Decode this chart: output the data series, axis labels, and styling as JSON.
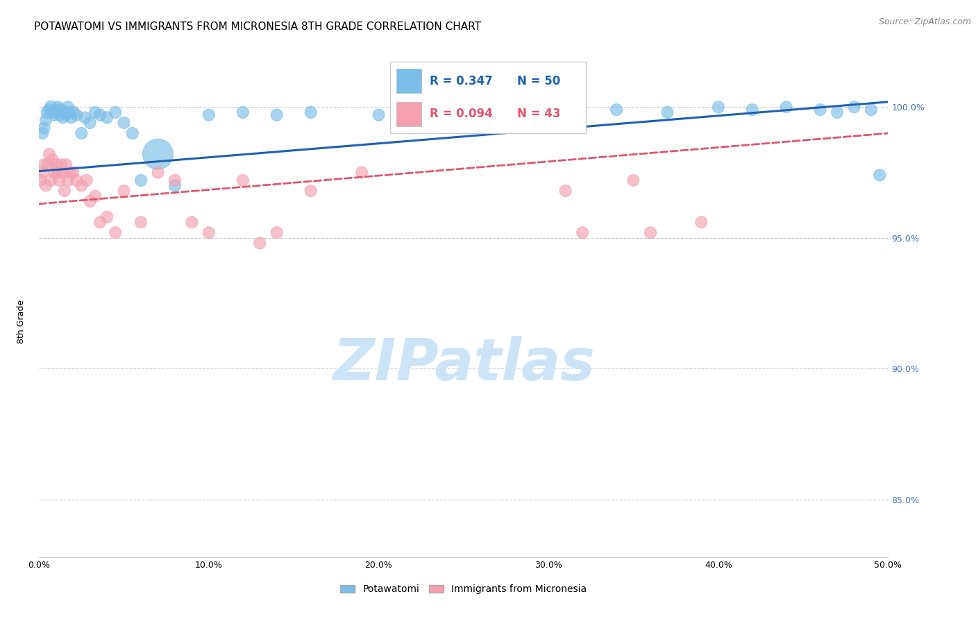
{
  "title": "POTAWATOMI VS IMMIGRANTS FROM MICRONESIA 8TH GRADE CORRELATION CHART",
  "source": "Source: ZipAtlas.com",
  "ylabel": "8th Grade",
  "xlim": [
    0.0,
    0.5
  ],
  "ylim": [
    0.828,
    1.022
  ],
  "xticks": [
    0.0,
    0.1,
    0.2,
    0.3,
    0.4,
    0.5
  ],
  "xticklabels": [
    "0.0%",
    "10.0%",
    "20.0%",
    "30.0%",
    "40.0%",
    "50.0%"
  ],
  "yticks": [
    0.85,
    0.9,
    0.95,
    1.0
  ],
  "yticklabels": [
    "85.0%",
    "90.0%",
    "95.0%",
    "100.0%"
  ],
  "blue_color": "#7abde8",
  "pink_color": "#f4a0b0",
  "blue_line_color": "#2060b0",
  "pink_line_color": "#e05570",
  "legend_R1": "R = 0.347",
  "legend_N1": "N = 50",
  "legend_R2": "R = 0.094",
  "legend_N2": "N = 43",
  "legend_label1": "Potawatomi",
  "legend_label2": "Immigrants from Micronesia",
  "watermark": "ZIPatlas",
  "blue_scatter_x": [
    0.002,
    0.003,
    0.004,
    0.005,
    0.006,
    0.007,
    0.008,
    0.009,
    0.01,
    0.011,
    0.012,
    0.013,
    0.014,
    0.015,
    0.016,
    0.017,
    0.018,
    0.019,
    0.02,
    0.022,
    0.025,
    0.027,
    0.03,
    0.033,
    0.036,
    0.04,
    0.045,
    0.05,
    0.055,
    0.06,
    0.07,
    0.08,
    0.1,
    0.12,
    0.14,
    0.16,
    0.2,
    0.23,
    0.27,
    0.31,
    0.34,
    0.37,
    0.4,
    0.42,
    0.44,
    0.46,
    0.47,
    0.48,
    0.49,
    0.495
  ],
  "blue_scatter_y": [
    0.99,
    0.992,
    0.995,
    0.998,
    0.999,
    1.0,
    0.998,
    0.997,
    0.999,
    1.0,
    0.997,
    0.999,
    0.996,
    0.998,
    0.997,
    1.0,
    0.998,
    0.996,
    0.998,
    0.997,
    0.99,
    0.996,
    0.994,
    0.998,
    0.997,
    0.996,
    0.998,
    0.994,
    0.99,
    0.972,
    0.982,
    0.97,
    0.997,
    0.998,
    0.997,
    0.998,
    0.997,
    0.996,
    0.998,
    0.997,
    0.999,
    0.998,
    1.0,
    0.999,
    1.0,
    0.999,
    0.998,
    1.0,
    0.999,
    0.974
  ],
  "blue_scatter_size": [
    30,
    30,
    30,
    35,
    30,
    35,
    30,
    30,
    30,
    30,
    30,
    30,
    30,
    30,
    30,
    30,
    30,
    30,
    35,
    30,
    30,
    30,
    30,
    30,
    30,
    30,
    30,
    30,
    30,
    30,
    200,
    30,
    30,
    30,
    30,
    30,
    30,
    30,
    30,
    30,
    30,
    30,
    30,
    30,
    30,
    30,
    30,
    30,
    30,
    30
  ],
  "pink_scatter_x": [
    0.001,
    0.002,
    0.003,
    0.004,
    0.005,
    0.006,
    0.007,
    0.008,
    0.009,
    0.01,
    0.011,
    0.012,
    0.013,
    0.014,
    0.015,
    0.016,
    0.017,
    0.018,
    0.02,
    0.022,
    0.025,
    0.028,
    0.03,
    0.033,
    0.036,
    0.04,
    0.045,
    0.05,
    0.06,
    0.07,
    0.08,
    0.09,
    0.1,
    0.12,
    0.13,
    0.14,
    0.16,
    0.19,
    0.31,
    0.32,
    0.35,
    0.36,
    0.39
  ],
  "pink_scatter_y": [
    0.972,
    0.975,
    0.978,
    0.97,
    0.978,
    0.982,
    0.972,
    0.98,
    0.975,
    0.978,
    0.975,
    0.972,
    0.978,
    0.975,
    0.968,
    0.978,
    0.972,
    0.975,
    0.975,
    0.972,
    0.97,
    0.972,
    0.964,
    0.966,
    0.956,
    0.958,
    0.952,
    0.968,
    0.956,
    0.975,
    0.972,
    0.956,
    0.952,
    0.972,
    0.948,
    0.952,
    0.968,
    0.975,
    0.968,
    0.952,
    0.972,
    0.952,
    0.956
  ],
  "pink_scatter_size": [
    30,
    30,
    30,
    30,
    30,
    30,
    30,
    30,
    30,
    30,
    30,
    30,
    30,
    30,
    30,
    30,
    30,
    30,
    30,
    30,
    30,
    30,
    30,
    30,
    30,
    30,
    30,
    30,
    30,
    30,
    30,
    30,
    30,
    30,
    30,
    30,
    30,
    30,
    30,
    30,
    30,
    30,
    30
  ],
  "grid_color": "#cccccc",
  "bg_color": "#ffffff",
  "title_fontsize": 11,
  "axis_label_fontsize": 9,
  "tick_fontsize": 9,
  "source_fontsize": 9,
  "watermark_fontsize": 60,
  "watermark_color": "#cce4f6",
  "yaxis_color": "#4472c4"
}
